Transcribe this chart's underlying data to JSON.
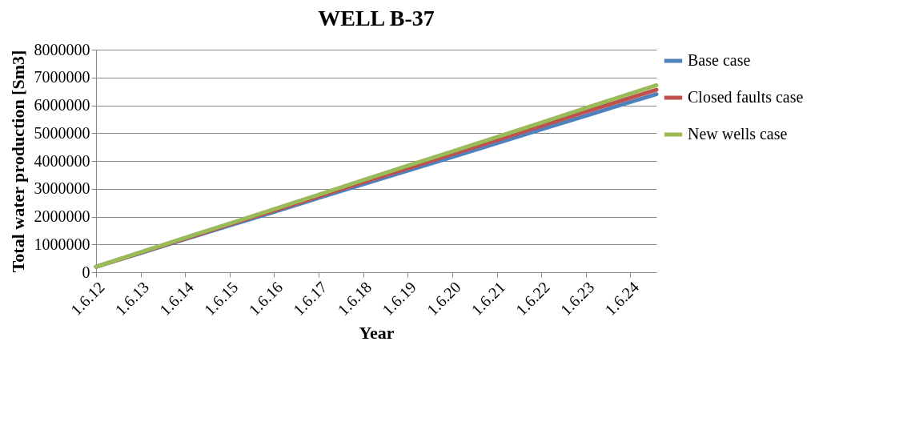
{
  "chart_data": {
    "type": "line",
    "title": "WELL B-37",
    "xlabel": "Year",
    "ylabel": "Total water production [Sm3]",
    "x": [
      "2012-06-01",
      "2013-06-01",
      "2014-06-01",
      "2015-06-01",
      "2016-06-01",
      "2017-06-01",
      "2018-06-01",
      "2019-06-01",
      "2020-06-01",
      "2021-06-01",
      "2022-06-01",
      "2023-06-01",
      "2024-06-01",
      "2025-01-01"
    ],
    "series": [
      {
        "name": "Base case",
        "color": "#4f81bd",
        "values": [
          200000,
          690000,
          1190000,
          1680000,
          2170000,
          2670000,
          3160000,
          3650000,
          4140000,
          4640000,
          5130000,
          5620000,
          6120000,
          6400000
        ]
      },
      {
        "name": "Closed faults case",
        "color": "#c0504d",
        "values": [
          200000,
          710000,
          1210000,
          1720000,
          2220000,
          2730000,
          3240000,
          3740000,
          4250000,
          4750000,
          5260000,
          5770000,
          6270000,
          6560000
        ]
      },
      {
        "name": "New wells case",
        "color": "#9bbb59",
        "values": [
          200000,
          720000,
          1240000,
          1750000,
          2270000,
          2790000,
          3310000,
          3830000,
          4340000,
          4860000,
          5380000,
          5900000,
          6420000,
          6720000
        ]
      }
    ],
    "xlim": [
      "2012-06-01",
      "2025-01-01"
    ],
    "xticks": [
      {
        "value": "2012-06-01",
        "label": "1.6.12"
      },
      {
        "value": "2013-06-01",
        "label": "1.6.13"
      },
      {
        "value": "2014-06-01",
        "label": "1.6.14"
      },
      {
        "value": "2015-06-01",
        "label": "1.6.15"
      },
      {
        "value": "2016-06-01",
        "label": "1.6.16"
      },
      {
        "value": "2017-06-01",
        "label": "1.6.17"
      },
      {
        "value": "2018-06-01",
        "label": "1.6.18"
      },
      {
        "value": "2019-06-01",
        "label": "1.6.19"
      },
      {
        "value": "2020-06-01",
        "label": "1.6.20"
      },
      {
        "value": "2021-06-01",
        "label": "1.6.21"
      },
      {
        "value": "2022-06-01",
        "label": "1.6.22"
      },
      {
        "value": "2023-06-01",
        "label": "1.6.23"
      },
      {
        "value": "2024-06-01",
        "label": "1.6.24"
      }
    ],
    "ylim": [
      0,
      8000000
    ],
    "yticks": [
      0,
      1000000,
      2000000,
      3000000,
      4000000,
      5000000,
      6000000,
      7000000,
      8000000
    ],
    "grid": "y",
    "legend": "right",
    "marker": "none",
    "line_style": "solid"
  }
}
